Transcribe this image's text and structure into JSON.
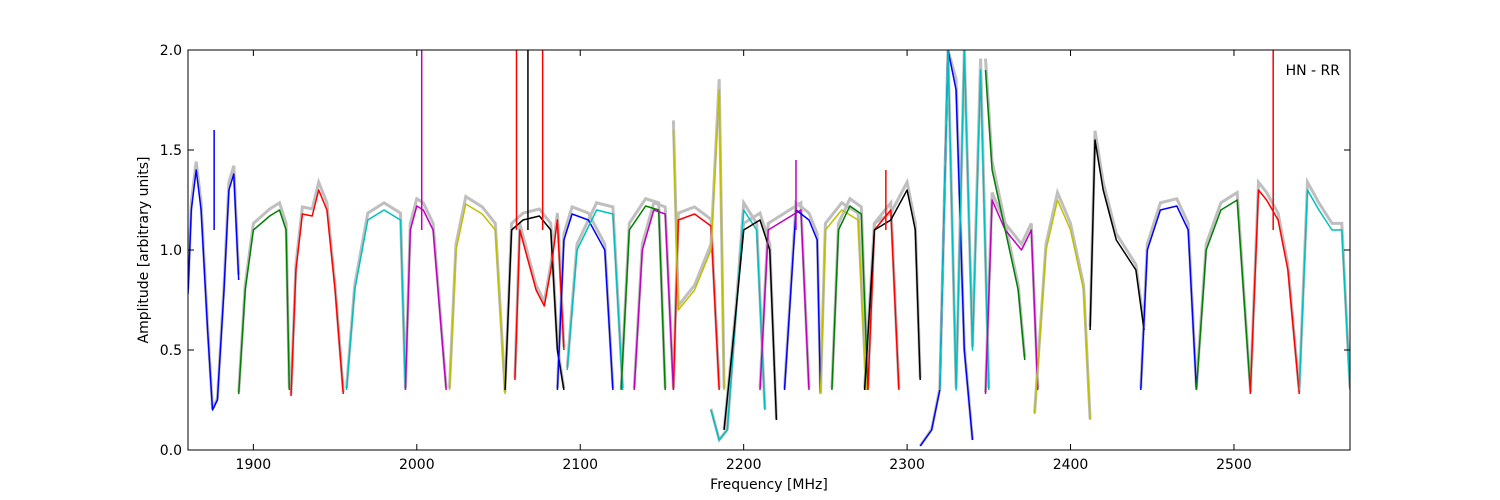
{
  "chart_data": {
    "type": "line",
    "title": "",
    "annotation": "HN - RR",
    "xlabel": "Frequency [MHz]",
    "ylabel": "Amplitude [arbitrary units]",
    "xlim": [
      1860,
      2571
    ],
    "ylim": [
      0.0,
      2.0
    ],
    "xticks": [
      1900,
      2000,
      2100,
      2200,
      2300,
      2400,
      2500
    ],
    "yticks": [
      0.0,
      0.5,
      1.0,
      1.5,
      2.0
    ],
    "xtick_labels": [
      "1900",
      "2000",
      "2100",
      "2200",
      "2300",
      "2400",
      "2500"
    ],
    "ytick_labels": [
      "0.0",
      "0.5",
      "1.0",
      "1.5",
      "2.0"
    ],
    "grid": false,
    "background_color": "#bfbfbf",
    "series": [
      {
        "color": "#0000ff",
        "x": [
          1860,
          1862,
          1865,
          1868,
          1872,
          1875,
          1878,
          1882,
          1885,
          1888,
          1891
        ],
        "y": [
          0.78,
          1.2,
          1.4,
          1.2,
          0.6,
          0.2,
          0.25,
          0.8,
          1.3,
          1.38,
          0.85
        ]
      },
      {
        "color": "#008000",
        "x": [
          1891,
          1895,
          1900,
          1910,
          1916,
          1920,
          1922
        ],
        "y": [
          0.28,
          0.8,
          1.1,
          1.17,
          1.2,
          1.1,
          0.3
        ]
      },
      {
        "color": "#ff0000",
        "x": [
          1923,
          1926,
          1930,
          1936,
          1940,
          1945,
          1950,
          1955
        ],
        "y": [
          0.27,
          0.9,
          1.18,
          1.17,
          1.3,
          1.2,
          0.8,
          0.28
        ]
      },
      {
        "color": "#00bfbf",
        "x": [
          1957,
          1962,
          1970,
          1980,
          1990,
          1993
        ],
        "y": [
          0.3,
          0.8,
          1.15,
          1.2,
          1.15,
          0.3
        ]
      },
      {
        "color": "#bf00bf",
        "x": [
          1993,
          1996,
          2000,
          2004,
          2010,
          2018
        ],
        "y": [
          0.3,
          1.1,
          1.22,
          1.2,
          1.1,
          0.3
        ]
      },
      {
        "color": "#bfbf00",
        "x": [
          2020,
          2024,
          2030,
          2040,
          2048,
          2054
        ],
        "y": [
          0.3,
          1.0,
          1.23,
          1.18,
          1.1,
          0.28
        ]
      },
      {
        "color": "#000000",
        "x": [
          2054,
          2058,
          2065,
          2075,
          2082,
          2086,
          2090
        ],
        "y": [
          0.3,
          1.1,
          1.15,
          1.17,
          1.1,
          0.5,
          0.3
        ]
      },
      {
        "color": "#ff0000",
        "x": [
          2060,
          2063,
          2068,
          2073,
          2078,
          2082,
          2086,
          2090
        ],
        "y": [
          0.35,
          1.1,
          0.95,
          0.8,
          0.72,
          0.9,
          1.15,
          0.5
        ]
      },
      {
        "color": "#0000ff",
        "x": [
          2086,
          2090,
          2095,
          2105,
          2115,
          2120
        ],
        "y": [
          0.3,
          1.05,
          1.18,
          1.15,
          1.0,
          0.3
        ]
      },
      {
        "color": "#00bfbf",
        "x": [
          2092,
          2098,
          2110,
          2120,
          2126
        ],
        "y": [
          0.4,
          1.0,
          1.2,
          1.18,
          0.3
        ]
      },
      {
        "color": "#008000",
        "x": [
          2125,
          2130,
          2140,
          2148,
          2152
        ],
        "y": [
          0.3,
          1.1,
          1.22,
          1.2,
          0.3
        ]
      },
      {
        "color": "#bf00bf",
        "x": [
          2133,
          2138,
          2145,
          2152,
          2157
        ],
        "y": [
          0.3,
          1.0,
          1.2,
          1.18,
          0.3
        ]
      },
      {
        "color": "#ff0000",
        "x": [
          2157,
          2160,
          2170,
          2180,
          2185
        ],
        "y": [
          0.3,
          1.15,
          1.18,
          1.12,
          0.3
        ]
      },
      {
        "color": "#bfbf00",
        "x": [
          2157,
          2160,
          2170,
          2180,
          2185,
          2188
        ],
        "y": [
          1.6,
          0.7,
          0.8,
          1.0,
          1.8,
          0.3
        ]
      },
      {
        "color": "#00bfbf",
        "x": [
          2180,
          2185,
          2190,
          2200,
          2208,
          2213
        ],
        "y": [
          0.2,
          0.05,
          0.1,
          1.2,
          1.1,
          0.2
        ]
      },
      {
        "color": "#000000",
        "x": [
          2188,
          2193,
          2200,
          2210,
          2216,
          2220
        ],
        "y": [
          0.1,
          0.5,
          1.1,
          1.15,
          1.0,
          0.15
        ]
      },
      {
        "color": "#bf00bf",
        "x": [
          2210,
          2215,
          2225,
          2235,
          2240
        ],
        "y": [
          0.3,
          1.1,
          1.15,
          1.2,
          0.3
        ]
      },
      {
        "color": "#0000ff",
        "x": [
          2225,
          2232,
          2240,
          2245,
          2247
        ],
        "y": [
          0.3,
          1.2,
          1.15,
          1.05,
          0.28
        ]
      },
      {
        "color": "#bfbf00",
        "x": [
          2247,
          2250,
          2260,
          2270,
          2275
        ],
        "y": [
          0.28,
          1.1,
          1.2,
          1.15,
          0.3
        ]
      },
      {
        "color": "#008000",
        "x": [
          2254,
          2258,
          2265,
          2272,
          2276
        ],
        "y": [
          0.3,
          1.1,
          1.22,
          1.18,
          0.3
        ]
      },
      {
        "color": "#ff0000",
        "x": [
          2276,
          2280,
          2285,
          2290,
          2295
        ],
        "y": [
          0.3,
          1.1,
          1.15,
          1.2,
          0.3
        ]
      },
      {
        "color": "#000000",
        "x": [
          2274,
          2280,
          2290,
          2300,
          2305,
          2308
        ],
        "y": [
          0.3,
          1.1,
          1.15,
          1.3,
          1.1,
          0.35
        ]
      },
      {
        "color": "#0000ff",
        "x": [
          2308,
          2315,
          2320,
          2325,
          2330,
          2335,
          2340
        ],
        "y": [
          0.02,
          0.1,
          0.3,
          2.0,
          1.8,
          0.5,
          0.05
        ]
      },
      {
        "color": "#00bfbf",
        "x": [
          2320,
          2325,
          2330,
          2335,
          2340,
          2345,
          2350
        ],
        "y": [
          0.3,
          2.0,
          0.3,
          2.0,
          0.5,
          1.9,
          0.3
        ]
      },
      {
        "color": "#bf00bf",
        "x": [
          2348,
          2352,
          2360,
          2370,
          2376,
          2380
        ],
        "y": [
          0.28,
          1.25,
          1.1,
          1.0,
          1.1,
          0.3
        ]
      },
      {
        "color": "#008000",
        "x": [
          2348,
          2352,
          2360,
          2368,
          2372
        ],
        "y": [
          1.9,
          1.4,
          1.1,
          0.8,
          0.45
        ]
      },
      {
        "color": "#bfbf00",
        "x": [
          2378,
          2385,
          2392,
          2400,
          2408,
          2412
        ],
        "y": [
          0.18,
          1.0,
          1.25,
          1.1,
          0.8,
          0.15
        ]
      },
      {
        "color": "#000000",
        "x": [
          2412,
          2415,
          2420,
          2428,
          2440,
          2445
        ],
        "y": [
          0.6,
          1.55,
          1.3,
          1.05,
          0.9,
          0.6
        ]
      },
      {
        "color": "#0000ff",
        "x": [
          2443,
          2447,
          2455,
          2465,
          2472,
          2477
        ],
        "y": [
          0.3,
          1.0,
          1.2,
          1.22,
          1.1,
          0.3
        ]
      },
      {
        "color": "#008000",
        "x": [
          2477,
          2483,
          2492,
          2502,
          2510
        ],
        "y": [
          0.3,
          1.0,
          1.2,
          1.25,
          0.3
        ]
      },
      {
        "color": "#ff0000",
        "x": [
          2510,
          2515,
          2520,
          2527,
          2533,
          2540
        ],
        "y": [
          0.28,
          1.3,
          1.25,
          1.15,
          0.9,
          0.28
        ]
      },
      {
        "color": "#00bfbf",
        "x": [
          2540,
          2545,
          2552,
          2560,
          2566,
          2571
        ],
        "y": [
          0.3,
          1.3,
          1.2,
          1.1,
          1.1,
          0.3
        ]
      }
    ],
    "spikes": [
      {
        "color": "#0000ff",
        "x": 1876,
        "y": 1.6
      },
      {
        "color": "#bf00bf",
        "x": 2003,
        "y": 2.0
      },
      {
        "color": "#ff0000",
        "x": 2061,
        "y": 2.0
      },
      {
        "color": "#000000",
        "x": 2068,
        "y": 2.0
      },
      {
        "color": "#ff0000",
        "x": 2077,
        "y": 2.0
      },
      {
        "color": "#bf00bf",
        "x": 2232,
        "y": 1.45
      },
      {
        "color": "#ff0000",
        "x": 2287,
        "y": 1.4
      },
      {
        "color": "#ff0000",
        "x": 2524,
        "y": 2.0
      }
    ]
  }
}
